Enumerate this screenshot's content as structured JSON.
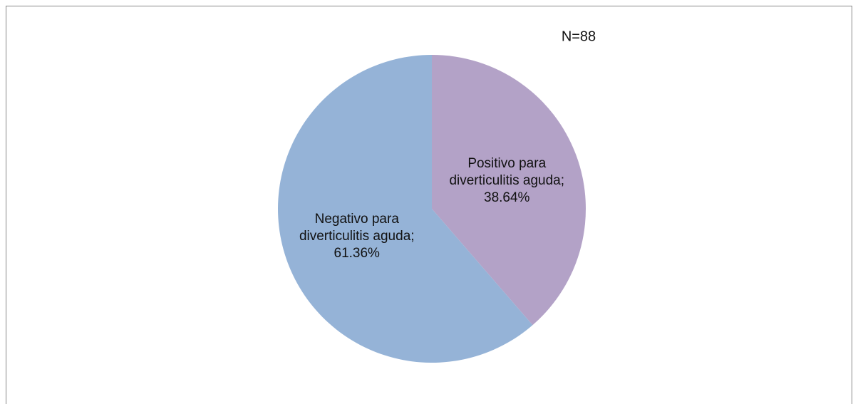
{
  "chart_data": {
    "type": "pie",
    "title": "N=88",
    "values": [
      38.64,
      61.36
    ],
    "value_labels": [
      "Positivo para diverticulitis aguda; 38.64%",
      "Negativo para diverticulitis aguda; 61.36%"
    ],
    "colors": [
      "#b3a2c7",
      "#95b3d7"
    ]
  }
}
